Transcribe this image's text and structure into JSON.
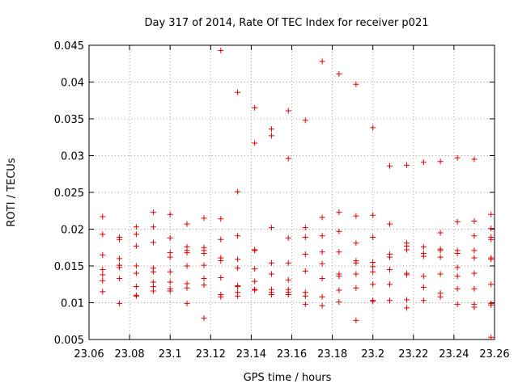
{
  "chart_data": {
    "type": "scatter",
    "title": "Day 317 of 2014, Rate Of TEC Index for receiver p021",
    "xlabel": "GPS time / hours",
    "ylabel": "ROTI / TECUs",
    "xlim": [
      23.06,
      23.26
    ],
    "ylim": [
      0.005,
      0.045
    ],
    "grid": true,
    "marker": "+",
    "marker_color": "#e00000",
    "xticks": [
      "23.06",
      "23.08",
      "23.1",
      "23.12",
      "23.14",
      "23.16",
      "23.18",
      "23.2",
      "23.22",
      "23.24",
      "23.26"
    ],
    "yticks": [
      "0.005",
      "0.01",
      "0.015",
      "0.02",
      "0.025",
      "0.03",
      "0.035",
      "0.04",
      "0.045"
    ],
    "series": [
      {
        "name": "ROTI",
        "points": [
          [
            23.0667,
            0.0217
          ],
          [
            23.0667,
            0.0193
          ],
          [
            23.0667,
            0.0165
          ],
          [
            23.0667,
            0.0145
          ],
          [
            23.0667,
            0.0138
          ],
          [
            23.0667,
            0.013
          ],
          [
            23.0667,
            0.0115
          ],
          [
            23.075,
            0.0189
          ],
          [
            23.075,
            0.0186
          ],
          [
            23.075,
            0.016
          ],
          [
            23.075,
            0.0151
          ],
          [
            23.075,
            0.0148
          ],
          [
            23.075,
            0.0133
          ],
          [
            23.075,
            0.0099
          ],
          [
            23.0833,
            0.0203
          ],
          [
            23.0833,
            0.0193
          ],
          [
            23.0833,
            0.0177
          ],
          [
            23.0833,
            0.015
          ],
          [
            23.0833,
            0.014
          ],
          [
            23.0833,
            0.0122
          ],
          [
            23.0833,
            0.011
          ],
          [
            23.0833,
            0.0109
          ],
          [
            23.0917,
            0.0223
          ],
          [
            23.0917,
            0.0203
          ],
          [
            23.0917,
            0.0182
          ],
          [
            23.0917,
            0.0147
          ],
          [
            23.0917,
            0.0142
          ],
          [
            23.0917,
            0.0128
          ],
          [
            23.0917,
            0.0122
          ],
          [
            23.0917,
            0.0116
          ],
          [
            23.1,
            0.022
          ],
          [
            23.1,
            0.0188
          ],
          [
            23.1,
            0.0168
          ],
          [
            23.1,
            0.0162
          ],
          [
            23.1,
            0.0142
          ],
          [
            23.1,
            0.0128
          ],
          [
            23.1,
            0.0119
          ],
          [
            23.1,
            0.0116
          ],
          [
            23.1083,
            0.0207
          ],
          [
            23.1083,
            0.0176
          ],
          [
            23.1083,
            0.0171
          ],
          [
            23.1083,
            0.0168
          ],
          [
            23.1083,
            0.015
          ],
          [
            23.1083,
            0.0126
          ],
          [
            23.1083,
            0.012
          ],
          [
            23.1083,
            0.0099
          ],
          [
            23.1167,
            0.0215
          ],
          [
            23.1167,
            0.0175
          ],
          [
            23.1167,
            0.0171
          ],
          [
            23.1167,
            0.0167
          ],
          [
            23.1167,
            0.0151
          ],
          [
            23.1167,
            0.0133
          ],
          [
            23.1167,
            0.0124
          ],
          [
            23.1167,
            0.0079
          ],
          [
            23.125,
            0.0443
          ],
          [
            23.125,
            0.0214
          ],
          [
            23.125,
            0.0186
          ],
          [
            23.125,
            0.0161
          ],
          [
            23.125,
            0.0157
          ],
          [
            23.125,
            0.0134
          ],
          [
            23.125,
            0.0111
          ],
          [
            23.125,
            0.0108
          ],
          [
            23.1333,
            0.0386
          ],
          [
            23.1333,
            0.0251
          ],
          [
            23.1333,
            0.0191
          ],
          [
            23.1333,
            0.0159
          ],
          [
            23.1333,
            0.0147
          ],
          [
            23.1333,
            0.0123
          ],
          [
            23.1333,
            0.0122
          ],
          [
            23.1333,
            0.0114
          ],
          [
            23.1333,
            0.0109
          ],
          [
            23.1417,
            0.0365
          ],
          [
            23.1417,
            0.0317
          ],
          [
            23.1417,
            0.0172
          ],
          [
            23.1417,
            0.0171
          ],
          [
            23.1417,
            0.0146
          ],
          [
            23.1417,
            0.0129
          ],
          [
            23.1417,
            0.0118
          ],
          [
            23.1417,
            0.0117
          ],
          [
            23.15,
            0.0336
          ],
          [
            23.15,
            0.0327
          ],
          [
            23.15,
            0.0202
          ],
          [
            23.15,
            0.0154
          ],
          [
            23.15,
            0.0139
          ],
          [
            23.15,
            0.0118
          ],
          [
            23.15,
            0.0114
          ],
          [
            23.15,
            0.0111
          ],
          [
            23.1583,
            0.0361
          ],
          [
            23.1583,
            0.0296
          ],
          [
            23.1583,
            0.0188
          ],
          [
            23.1583,
            0.0154
          ],
          [
            23.1583,
            0.0131
          ],
          [
            23.1583,
            0.0118
          ],
          [
            23.1583,
            0.0114
          ],
          [
            23.1583,
            0.0111
          ],
          [
            23.1667,
            0.0348
          ],
          [
            23.1667,
            0.0202
          ],
          [
            23.1667,
            0.0189
          ],
          [
            23.1667,
            0.0166
          ],
          [
            23.1667,
            0.0143
          ],
          [
            23.1667,
            0.0114
          ],
          [
            23.1667,
            0.0109
          ],
          [
            23.1667,
            0.0098
          ],
          [
            23.175,
            0.0428
          ],
          [
            23.175,
            0.0216
          ],
          [
            23.175,
            0.0191
          ],
          [
            23.175,
            0.0169
          ],
          [
            23.175,
            0.0153
          ],
          [
            23.175,
            0.0133
          ],
          [
            23.175,
            0.0108
          ],
          [
            23.175,
            0.0096
          ],
          [
            23.1833,
            0.0411
          ],
          [
            23.1833,
            0.0223
          ],
          [
            23.1833,
            0.0197
          ],
          [
            23.1833,
            0.0169
          ],
          [
            23.1833,
            0.0139
          ],
          [
            23.1833,
            0.0136
          ],
          [
            23.1833,
            0.0117
          ],
          [
            23.1833,
            0.0101
          ],
          [
            23.1917,
            0.0397
          ],
          [
            23.1917,
            0.0218
          ],
          [
            23.1917,
            0.0181
          ],
          [
            23.1917,
            0.0157
          ],
          [
            23.1917,
            0.0154
          ],
          [
            23.1917,
            0.0139
          ],
          [
            23.1917,
            0.012
          ],
          [
            23.1917,
            0.0076
          ],
          [
            23.2,
            0.0338
          ],
          [
            23.2,
            0.0219
          ],
          [
            23.2,
            0.0189
          ],
          [
            23.2,
            0.0155
          ],
          [
            23.2,
            0.0149
          ],
          [
            23.2,
            0.0142
          ],
          [
            23.2,
            0.0125
          ],
          [
            23.2,
            0.0103
          ],
          [
            23.2,
            0.0102
          ],
          [
            23.2083,
            0.0286
          ],
          [
            23.2083,
            0.0207
          ],
          [
            23.2083,
            0.0166
          ],
          [
            23.2083,
            0.0162
          ],
          [
            23.2083,
            0.0145
          ],
          [
            23.2083,
            0.0125
          ],
          [
            23.2083,
            0.0103
          ],
          [
            23.2167,
            0.0287
          ],
          [
            23.2167,
            0.0181
          ],
          [
            23.2167,
            0.0177
          ],
          [
            23.2167,
            0.0172
          ],
          [
            23.2167,
            0.014
          ],
          [
            23.2167,
            0.0138
          ],
          [
            23.2167,
            0.0104
          ],
          [
            23.2167,
            0.0093
          ],
          [
            23.225,
            0.0291
          ],
          [
            23.225,
            0.0176
          ],
          [
            23.225,
            0.0167
          ],
          [
            23.225,
            0.0163
          ],
          [
            23.225,
            0.0136
          ],
          [
            23.225,
            0.0121
          ],
          [
            23.225,
            0.0103
          ],
          [
            23.2333,
            0.0292
          ],
          [
            23.2333,
            0.0195
          ],
          [
            23.2333,
            0.0173
          ],
          [
            23.2333,
            0.0171
          ],
          [
            23.2333,
            0.0162
          ],
          [
            23.2333,
            0.0139
          ],
          [
            23.2333,
            0.0113
          ],
          [
            23.2333,
            0.0108
          ],
          [
            23.2417,
            0.0297
          ],
          [
            23.2417,
            0.021
          ],
          [
            23.2417,
            0.0171
          ],
          [
            23.2417,
            0.0167
          ],
          [
            23.2417,
            0.0148
          ],
          [
            23.2417,
            0.0136
          ],
          [
            23.2417,
            0.0119
          ],
          [
            23.2417,
            0.0098
          ],
          [
            23.25,
            0.0295
          ],
          [
            23.25,
            0.0211
          ],
          [
            23.25,
            0.0191
          ],
          [
            23.25,
            0.0171
          ],
          [
            23.25,
            0.0161
          ],
          [
            23.25,
            0.014
          ],
          [
            23.25,
            0.0119
          ],
          [
            23.25,
            0.0098
          ],
          [
            23.25,
            0.0094
          ],
          [
            23.2583,
            0.022
          ],
          [
            23.2583,
            0.0201
          ],
          [
            23.2583,
            0.0189
          ],
          [
            23.2583,
            0.0186
          ],
          [
            23.2583,
            0.0161
          ],
          [
            23.2583,
            0.0159
          ],
          [
            23.2583,
            0.0125
          ],
          [
            23.2583,
            0.0099
          ],
          [
            23.2583,
            0.0097
          ],
          [
            23.2583,
            0.0053
          ]
        ]
      }
    ]
  }
}
